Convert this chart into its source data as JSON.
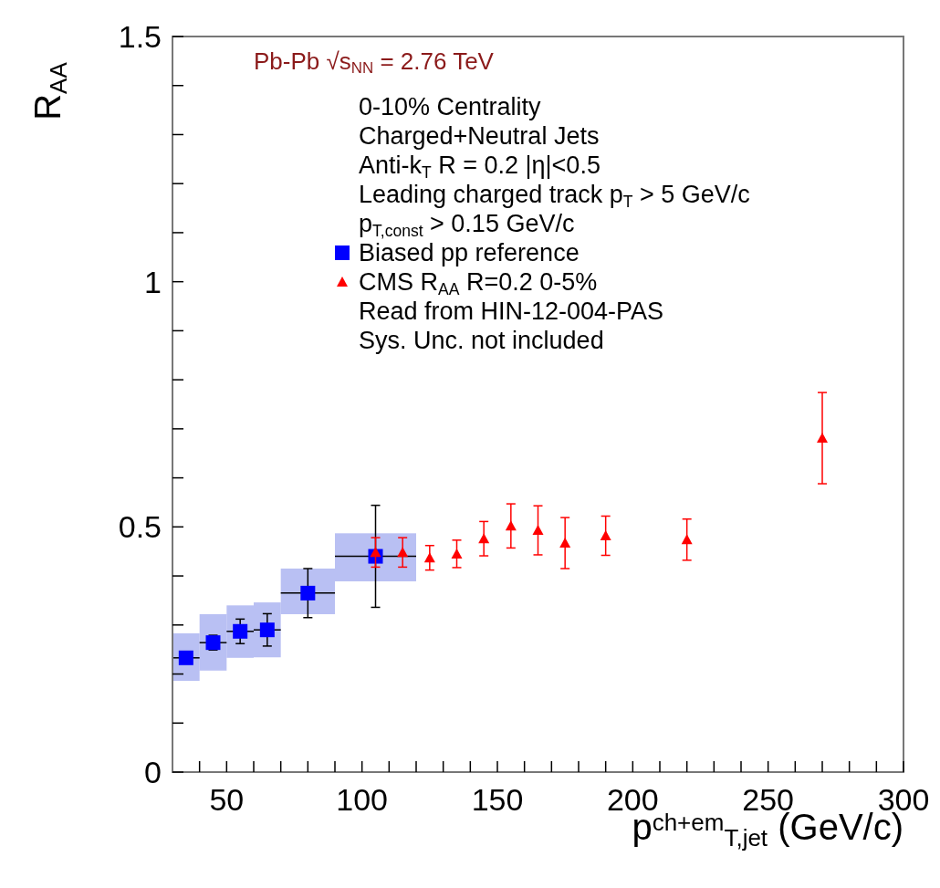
{
  "chart_data": {
    "type": "scatter",
    "title": "Pb-Pb √s$_{NN}$ = 2.76 TeV",
    "xlabel": "p$^{ch+em}$$_{T,jet}$ (GeV/c)",
    "ylabel": "R$_{AA}$",
    "annotations": [
      "0-10% Centrality",
      "Charged+Neutral Jets",
      "Anti-k$_{T}$ R = 0.2 |η|<0.5",
      "Leading charged track p$_{T}$ > 5 GeV/c",
      "p$_{T,const}$ > 0.15 GeV/c",
      "Read from HIN-12-004-PAS",
      "Sys. Unc. not included"
    ],
    "xlim": [
      30,
      300
    ],
    "xticks": [
      {
        "value": 40,
        "label": null
      },
      50,
      {
        "value": 60,
        "label": null
      },
      {
        "value": 70,
        "label": null
      },
      {
        "value": 80,
        "label": null
      },
      {
        "value": 90,
        "label": null
      },
      100,
      {
        "value": 110,
        "label": null
      },
      {
        "value": 120,
        "label": null
      },
      {
        "value": 130,
        "label": null
      },
      {
        "value": 140,
        "label": null
      },
      150,
      {
        "value": 160,
        "label": null
      },
      {
        "value": 170,
        "label": null
      },
      {
        "value": 180,
        "label": null
      },
      {
        "value": 190,
        "label": null
      },
      200,
      {
        "value": 210,
        "label": null
      },
      {
        "value": 220,
        "label": null
      },
      {
        "value": 230,
        "label": null
      },
      {
        "value": 240,
        "label": null
      },
      250,
      {
        "value": 260,
        "label": null
      },
      {
        "value": 270,
        "label": null
      },
      {
        "value": 280,
        "label": null
      },
      {
        "value": 290,
        "label": null
      },
      300
    ],
    "ylim": [
      0,
      1.5
    ],
    "yticks": [
      0,
      {
        "value": 0.1,
        "label": null
      },
      {
        "value": 0.2,
        "label": null
      },
      {
        "value": 0.3,
        "label": null
      },
      {
        "value": 0.4,
        "label": null
      },
      0.5,
      {
        "value": 0.6,
        "label": null
      },
      {
        "value": 0.7,
        "label": null
      },
      {
        "value": 0.8,
        "label": null
      },
      {
        "value": 0.9,
        "label": null
      },
      1,
      {
        "value": 1.1,
        "label": null
      },
      {
        "value": 1.2,
        "label": null
      },
      {
        "value": 1.3,
        "label": null
      },
      {
        "value": 1.4,
        "label": null
      },
      1.5
    ],
    "legend": "top",
    "series": [
      {
        "type": "bar",
        "color": "#a8b0f0",
        "x": [
          35,
          45,
          55,
          65,
          80,
          105
        ],
        "base": [
          0.186,
          0.207,
          0.233,
          0.234,
          0.322,
          0.389
        ],
        "values": [
          0.097,
          0.115,
          0.107,
          0.112,
          0.093,
          0.098
        ]
      },
      {
        "name": "Biased pp reference",
        "color": "#0000ff",
        "marker": "square",
        "x": [
          35,
          45,
          55,
          65,
          80,
          105
        ],
        "values": [
          0.233,
          0.264,
          0.287,
          0.29,
          0.365,
          0.44
        ],
        "errors": [
          null,
          0.015,
          0.025,
          0.033,
          0.05,
          0.104
        ],
        "xerrors": [
          5,
          5,
          5,
          5,
          10,
          15
        ]
      },
      {
        "name": "CMS R$_{AA}$ R=0.2 0-5%",
        "color": "#ff0000",
        "marker": "triangle",
        "x": [
          105,
          115,
          125,
          135,
          145,
          155,
          165,
          175,
          190,
          220,
          270
        ],
        "values": [
          0.448,
          0.448,
          0.437,
          0.445,
          0.476,
          0.502,
          0.493,
          0.467,
          0.482,
          0.474,
          0.681
        ],
        "errors": [
          0.03,
          0.03,
          0.025,
          0.028,
          0.035,
          0.045,
          0.05,
          0.052,
          0.04,
          0.042,
          0.093
        ]
      }
    ]
  }
}
